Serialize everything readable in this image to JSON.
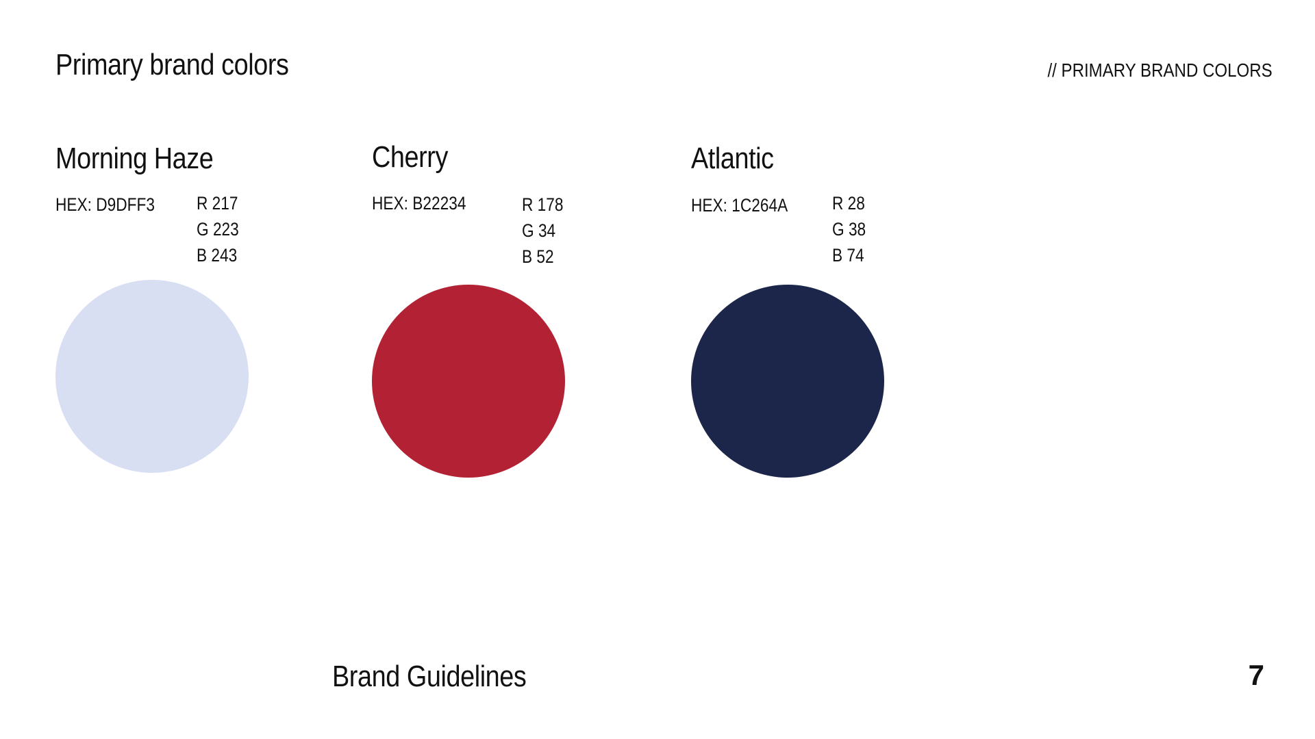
{
  "header": {
    "title": "Primary brand colors",
    "section_tag": "// PRIMARY BRAND COLORS"
  },
  "swatches": [
    {
      "name": "Morning Haze",
      "hex_label": "HEX: D9DFF3",
      "r": "R 217",
      "g": "G 223",
      "b": "B 243",
      "color": "#D9DFF3"
    },
    {
      "name": "Cherry",
      "hex_label": "HEX: B22234",
      "r": "R 178",
      "g": "G 34",
      "b": "B 52",
      "color": "#B22234"
    },
    {
      "name": "Atlantic",
      "hex_label": "HEX: 1C264A",
      "r": "R 28",
      "g": "G 38",
      "b": "B 74",
      "color": "#1C264A"
    }
  ],
  "footer": {
    "title": "Brand Guidelines",
    "page_number": "7"
  }
}
